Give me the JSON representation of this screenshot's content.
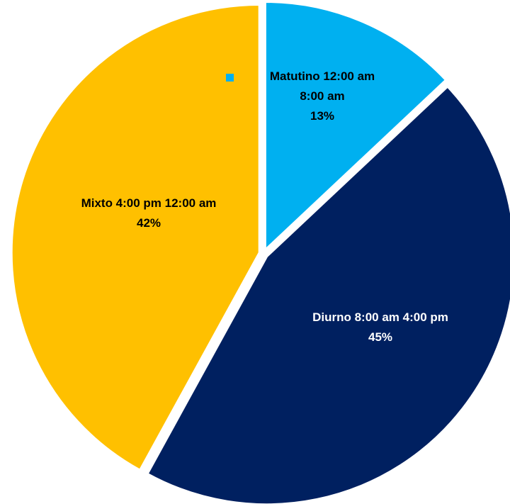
{
  "chart_data": {
    "type": "pie",
    "slices": [
      {
        "category": "Matutino 12:00 am 8:00 am",
        "value": 13,
        "percent_label": "13%",
        "label_lines": [
          "Matutino 12:00 am",
          "8:00 am",
          "13%"
        ],
        "color": "#00B0F0",
        "text_color": "#000000"
      },
      {
        "category": "Diurno 8:00 am 4:00 pm",
        "value": 45,
        "percent_label": "45%",
        "label_lines": [
          "Diurno 8:00 am 4:00 pm",
          "45%"
        ],
        "color": "#002060",
        "text_color": "#FFFFFF"
      },
      {
        "category": "Mixto 4:00 pm 12:00 am",
        "value": 42,
        "percent_label": "42%",
        "label_lines": [
          "Mixto 4:00 pm 12:00 am",
          "42%"
        ],
        "color": "#FFC000",
        "text_color": "#000000"
      }
    ],
    "exploded": true,
    "start_angle": "12 o'clock",
    "direction": "clockwise",
    "legend": "none"
  }
}
